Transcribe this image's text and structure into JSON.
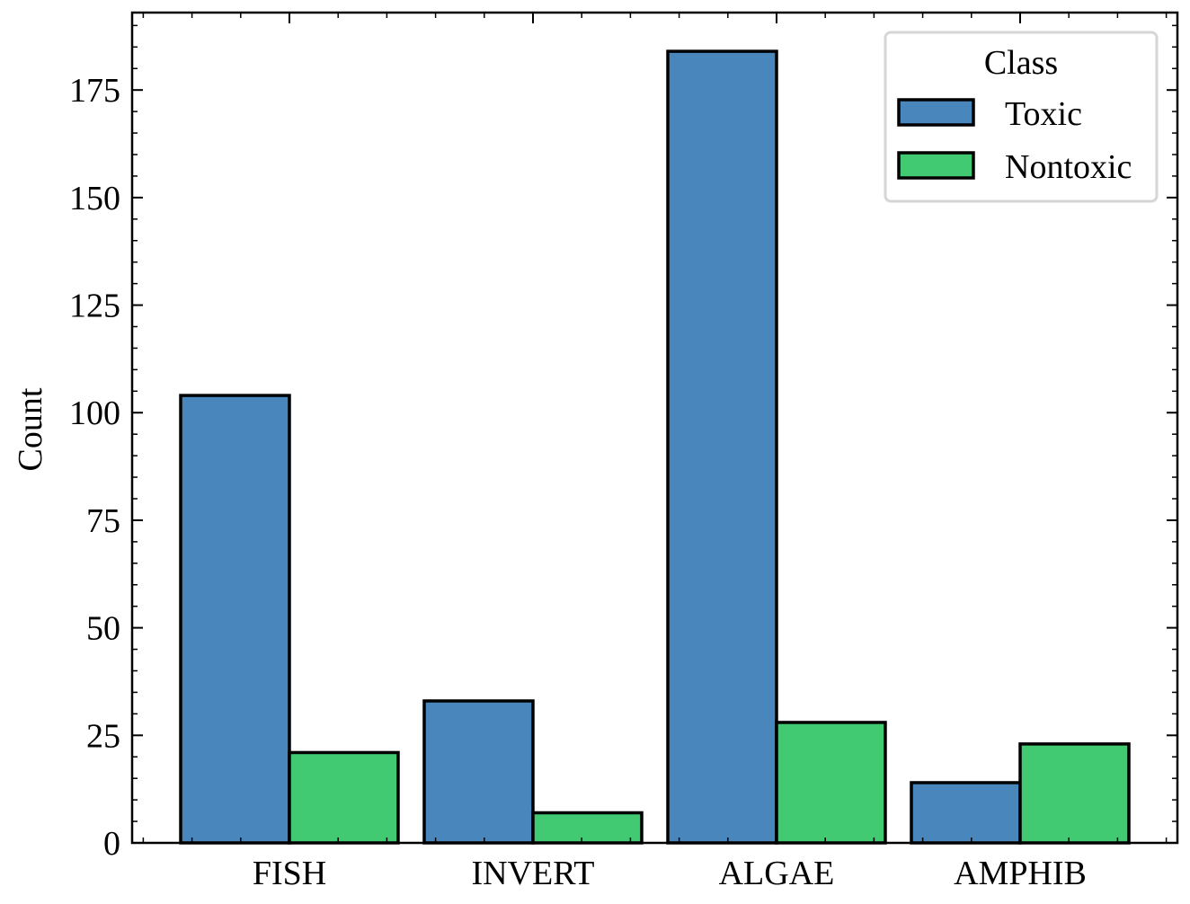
{
  "chart_data": {
    "type": "bar",
    "title": "",
    "xlabel": "",
    "ylabel": "Count",
    "categories": [
      "FISH",
      "INVERT",
      "ALGAE",
      "AMPHIB"
    ],
    "series": [
      {
        "name": "Toxic",
        "color": "#4886bc",
        "values": [
          104,
          33,
          184,
          14
        ]
      },
      {
        "name": "Nontoxic",
        "color": "#41ca72",
        "values": [
          21,
          7,
          28,
          23
        ]
      }
    ],
    "ylim": [
      0,
      193
    ],
    "yticks": [
      0,
      25,
      50,
      75,
      100,
      125,
      150,
      175
    ],
    "ytick_labels": [
      "0",
      "25",
      "50",
      "75",
      "100",
      "125",
      "150",
      "175"
    ],
    "y_minor_step": 5,
    "grid": false,
    "legend": {
      "title": "Class",
      "position": "top-right"
    }
  }
}
